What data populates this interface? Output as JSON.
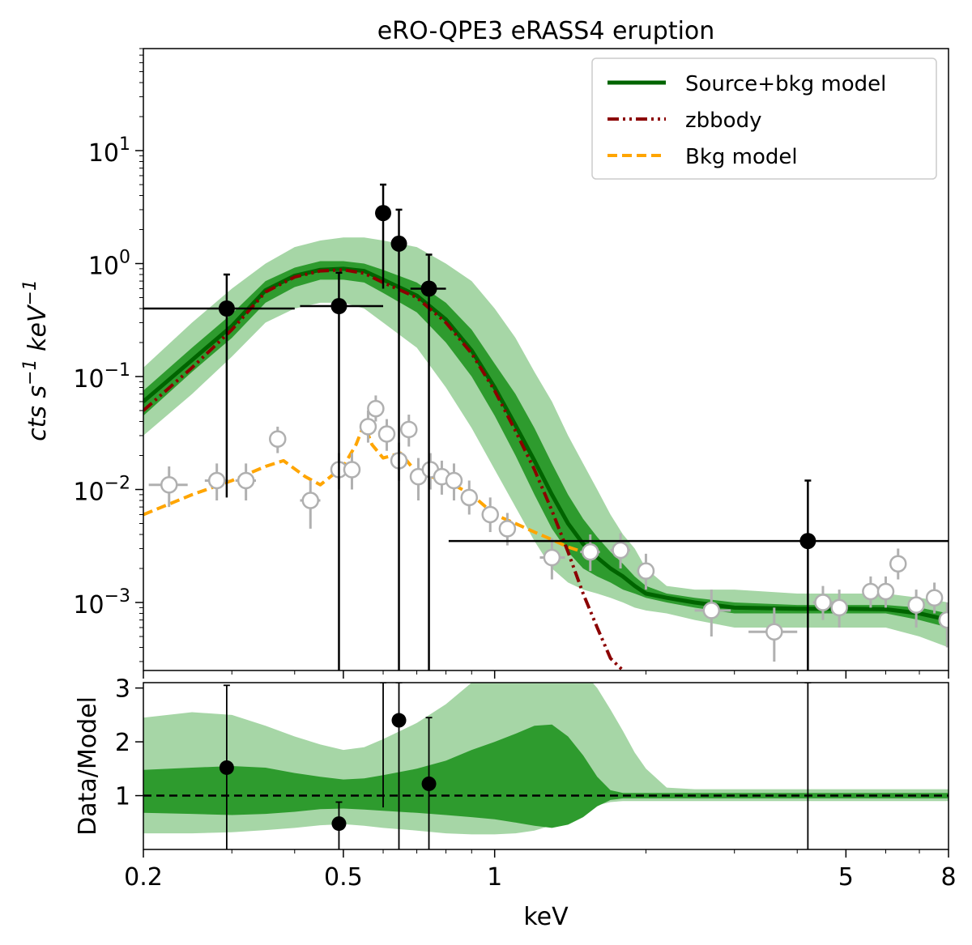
{
  "chart_data": [
    {
      "panel": "top",
      "type": "line",
      "title": "eRO-QPE3 eRASS4 eruption",
      "ylabel": "cts s^-1 keV^-1",
      "xscale": "log",
      "yscale": "log",
      "xlim": [
        0.2,
        8
      ],
      "ylim": [
        0.00025,
        80
      ],
      "yticks": [
        {
          "value": 0.001,
          "base": "10",
          "exp": "−3"
        },
        {
          "value": 0.01,
          "base": "10",
          "exp": "−2"
        },
        {
          "value": 0.1,
          "base": "10",
          "exp": "−1"
        },
        {
          "value": 1,
          "base": "10",
          "exp": "0"
        },
        {
          "value": 10,
          "base": "10",
          "exp": "1"
        }
      ],
      "legend": {
        "position": "top-right",
        "entries": [
          {
            "label": "Source+bkg model",
            "color": "#006400",
            "style": "solid"
          },
          {
            "label": "zbbody",
            "color": "#8b0000",
            "style": "dashdot"
          },
          {
            "label": "Bkg model",
            "color": "#ffa500",
            "style": "dashed"
          }
        ]
      },
      "bands": {
        "x": [
          0.2,
          0.25,
          0.3,
          0.35,
          0.4,
          0.45,
          0.5,
          0.55,
          0.6,
          0.7,
          0.8,
          0.9,
          1.0,
          1.1,
          1.2,
          1.3,
          1.4,
          1.5,
          1.6,
          1.7,
          1.8,
          1.9,
          2.0,
          2.2,
          2.5,
          3.0,
          4.0,
          5.0,
          6.0,
          7.0,
          8.0
        ],
        "outer_low": [
          0.03,
          0.07,
          0.15,
          0.3,
          0.4,
          0.45,
          0.45,
          0.4,
          0.3,
          0.18,
          0.08,
          0.035,
          0.015,
          0.007,
          0.0035,
          0.002,
          0.0015,
          0.0013,
          0.0012,
          0.0011,
          0.001,
          0.0009,
          0.00085,
          0.0008,
          0.0007,
          0.0006,
          0.0006,
          0.0006,
          0.0006,
          0.0005,
          0.0004
        ],
        "outer_high": [
          0.12,
          0.3,
          0.6,
          1.0,
          1.4,
          1.6,
          1.7,
          1.7,
          1.6,
          1.4,
          1.0,
          0.7,
          0.4,
          0.22,
          0.11,
          0.06,
          0.03,
          0.017,
          0.01,
          0.006,
          0.004,
          0.003,
          0.002,
          0.0014,
          0.0013,
          0.0013,
          0.0012,
          0.0012,
          0.0012,
          0.0011,
          0.001
        ],
        "inner_low": [
          0.045,
          0.11,
          0.22,
          0.45,
          0.62,
          0.72,
          0.72,
          0.68,
          0.55,
          0.37,
          0.2,
          0.1,
          0.045,
          0.02,
          0.009,
          0.0045,
          0.0028,
          0.002,
          0.0017,
          0.0015,
          0.0013,
          0.0012,
          0.0011,
          0.001,
          0.0009,
          0.0008,
          0.0008,
          0.0008,
          0.0008,
          0.0007,
          0.0006
        ],
        "inner_high": [
          0.075,
          0.18,
          0.36,
          0.7,
          0.92,
          1.05,
          1.05,
          1.0,
          0.88,
          0.68,
          0.45,
          0.26,
          0.13,
          0.07,
          0.035,
          0.017,
          0.009,
          0.0055,
          0.0038,
          0.0028,
          0.0022,
          0.0017,
          0.0014,
          0.0012,
          0.0011,
          0.001,
          0.00095,
          0.00095,
          0.00095,
          0.0009,
          0.0008
        ]
      },
      "series": [
        {
          "name": "Source+bkg model",
          "x": [
            0.2,
            0.25,
            0.3,
            0.35,
            0.4,
            0.45,
            0.5,
            0.55,
            0.6,
            0.7,
            0.8,
            0.9,
            1.0,
            1.1,
            1.2,
            1.3,
            1.4,
            1.5,
            1.6,
            1.7,
            1.8,
            1.9,
            2.0,
            2.2,
            2.5,
            3.0,
            4.0,
            5.0,
            6.0,
            7.0,
            8.0
          ],
          "y": [
            0.06,
            0.14,
            0.28,
            0.58,
            0.78,
            0.88,
            0.9,
            0.86,
            0.72,
            0.52,
            0.32,
            0.17,
            0.08,
            0.037,
            0.018,
            0.009,
            0.005,
            0.0033,
            0.0025,
            0.002,
            0.0017,
            0.0014,
            0.0012,
            0.0011,
            0.001,
            0.0009,
            0.00088,
            0.00088,
            0.00087,
            0.0008,
            0.0007
          ]
        },
        {
          "name": "zbbody",
          "x": [
            0.2,
            0.25,
            0.3,
            0.35,
            0.4,
            0.45,
            0.5,
            0.55,
            0.6,
            0.7,
            0.8,
            0.9,
            1.0,
            1.1,
            1.2,
            1.3,
            1.4,
            1.5,
            1.6,
            1.7,
            1.8
          ],
          "y": [
            0.05,
            0.12,
            0.26,
            0.56,
            0.76,
            0.86,
            0.88,
            0.82,
            0.68,
            0.5,
            0.3,
            0.16,
            0.075,
            0.033,
            0.015,
            0.0065,
            0.0028,
            0.0012,
            0.0006,
            0.00032,
            0.00025
          ]
        },
        {
          "name": "Bkg model",
          "x": [
            0.2,
            0.25,
            0.3,
            0.35,
            0.38,
            0.42,
            0.45,
            0.5,
            0.53,
            0.55,
            0.57,
            0.6,
            0.65,
            0.7,
            0.8,
            0.9,
            1.0,
            1.1,
            1.2,
            1.3,
            1.4,
            1.5,
            1.6
          ],
          "y": [
            0.006,
            0.009,
            0.012,
            0.016,
            0.018,
            0.013,
            0.011,
            0.016,
            0.025,
            0.038,
            0.025,
            0.019,
            0.021,
            0.014,
            0.012,
            0.009,
            0.006,
            0.005,
            0.0042,
            0.0036,
            0.0031,
            0.0028,
            0.0026
          ]
        }
      ],
      "source_points": [
        {
          "x": 0.293,
          "y": 0.4,
          "xlo": 0.2,
          "xhi": 0.4,
          "ylo": 0.0085,
          "yhi": 0.8
        },
        {
          "x": 0.49,
          "y": 0.42,
          "xlo": 0.41,
          "xhi": 0.6,
          "ylo": 0.00025,
          "yhi": 0.83
        },
        {
          "x": 0.6,
          "y": 2.8,
          "xlo": 0.59,
          "xhi": 0.61,
          "ylo": 0.6,
          "yhi": 5.0
        },
        {
          "x": 0.645,
          "y": 1.5,
          "xlo": 0.63,
          "xhi": 0.66,
          "ylo": 0.00025,
          "yhi": 3.0
        },
        {
          "x": 0.74,
          "y": 0.6,
          "xlo": 0.68,
          "xhi": 0.8,
          "ylo": 0.00025,
          "yhi": 1.2
        },
        {
          "x": 4.2,
          "y": 0.0035,
          "xlo": 0.81,
          "xhi": 8.0,
          "ylo": 0.00025,
          "yhi": 0.012
        }
      ],
      "background_points": [
        {
          "x": 0.225,
          "y": 0.011,
          "xlo": 0.205,
          "xhi": 0.245,
          "ylo": 0.007,
          "yhi": 0.016
        },
        {
          "x": 0.28,
          "y": 0.012,
          "xlo": 0.265,
          "xhi": 0.295,
          "ylo": 0.008,
          "yhi": 0.017
        },
        {
          "x": 0.32,
          "y": 0.012,
          "xlo": 0.305,
          "xhi": 0.335,
          "ylo": 0.008,
          "yhi": 0.017
        },
        {
          "x": 0.37,
          "y": 0.028,
          "xlo": 0.36,
          "xhi": 0.38,
          "ylo": 0.021,
          "yhi": 0.036
        },
        {
          "x": 0.43,
          "y": 0.008,
          "xlo": 0.41,
          "xhi": 0.45,
          "ylo": 0.0045,
          "yhi": 0.012
        },
        {
          "x": 0.49,
          "y": 0.015,
          "xlo": 0.48,
          "xhi": 0.5,
          "ylo": 0.01,
          "yhi": 0.021
        },
        {
          "x": 0.52,
          "y": 0.015,
          "xlo": 0.51,
          "xhi": 0.535,
          "ylo": 0.01,
          "yhi": 0.021
        },
        {
          "x": 0.56,
          "y": 0.036,
          "xlo": 0.55,
          "xhi": 0.57,
          "ylo": 0.026,
          "yhi": 0.05
        },
        {
          "x": 0.58,
          "y": 0.052,
          "xlo": 0.57,
          "xhi": 0.59,
          "ylo": 0.04,
          "yhi": 0.068
        },
        {
          "x": 0.61,
          "y": 0.031,
          "xlo": 0.6,
          "xhi": 0.62,
          "ylo": 0.022,
          "yhi": 0.042
        },
        {
          "x": 0.645,
          "y": 0.018,
          "xlo": 0.635,
          "xhi": 0.655,
          "ylo": 0.012,
          "yhi": 0.026
        },
        {
          "x": 0.675,
          "y": 0.034,
          "xlo": 0.665,
          "xhi": 0.685,
          "ylo": 0.024,
          "yhi": 0.046
        },
        {
          "x": 0.705,
          "y": 0.013,
          "xlo": 0.695,
          "xhi": 0.715,
          "ylo": 0.008,
          "yhi": 0.019
        },
        {
          "x": 0.745,
          "y": 0.015,
          "xlo": 0.735,
          "xhi": 0.755,
          "ylo": 0.01,
          "yhi": 0.021
        },
        {
          "x": 0.785,
          "y": 0.013,
          "xlo": 0.775,
          "xhi": 0.795,
          "ylo": 0.009,
          "yhi": 0.018
        },
        {
          "x": 0.83,
          "y": 0.012,
          "xlo": 0.815,
          "xhi": 0.845,
          "ylo": 0.008,
          "yhi": 0.017
        },
        {
          "x": 0.89,
          "y": 0.0085,
          "xlo": 0.87,
          "xhi": 0.91,
          "ylo": 0.006,
          "yhi": 0.012
        },
        {
          "x": 0.98,
          "y": 0.006,
          "xlo": 0.96,
          "xhi": 1.0,
          "ylo": 0.0042,
          "yhi": 0.0085
        },
        {
          "x": 1.06,
          "y": 0.0045,
          "xlo": 1.03,
          "xhi": 1.09,
          "ylo": 0.0032,
          "yhi": 0.0062
        },
        {
          "x": 1.3,
          "y": 0.0025,
          "xlo": 1.23,
          "xhi": 1.38,
          "ylo": 0.0016,
          "yhi": 0.0037
        },
        {
          "x": 1.55,
          "y": 0.0028,
          "xlo": 1.48,
          "xhi": 1.62,
          "ylo": 0.0019,
          "yhi": 0.004
        },
        {
          "x": 1.78,
          "y": 0.0029,
          "xlo": 1.7,
          "xhi": 1.86,
          "ylo": 0.002,
          "yhi": 0.0041
        },
        {
          "x": 2.0,
          "y": 0.0019,
          "xlo": 1.92,
          "xhi": 2.08,
          "ylo": 0.0013,
          "yhi": 0.0027
        },
        {
          "x": 2.7,
          "y": 0.00085,
          "xlo": 2.5,
          "xhi": 2.95,
          "ylo": 0.0005,
          "yhi": 0.0013
        },
        {
          "x": 3.6,
          "y": 0.00055,
          "xlo": 3.2,
          "xhi": 4.0,
          "ylo": 0.0003,
          "yhi": 0.0009
        },
        {
          "x": 4.5,
          "y": 0.001,
          "xlo": 4.3,
          "xhi": 4.7,
          "ylo": 0.0007,
          "yhi": 0.0014
        },
        {
          "x": 4.85,
          "y": 0.0009,
          "xlo": 4.7,
          "xhi": 5.0,
          "ylo": 0.0006,
          "yhi": 0.0013
        },
        {
          "x": 5.6,
          "y": 0.00125,
          "xlo": 5.5,
          "xhi": 5.7,
          "ylo": 0.0009,
          "yhi": 0.0017
        },
        {
          "x": 6.0,
          "y": 0.00125,
          "xlo": 5.9,
          "xhi": 6.1,
          "ylo": 0.0009,
          "yhi": 0.0017
        },
        {
          "x": 6.35,
          "y": 0.0022,
          "xlo": 6.25,
          "xhi": 6.45,
          "ylo": 0.0016,
          "yhi": 0.003
        },
        {
          "x": 6.9,
          "y": 0.00095,
          "xlo": 6.8,
          "xhi": 7.0,
          "ylo": 0.0006,
          "yhi": 0.0013
        },
        {
          "x": 7.5,
          "y": 0.0011,
          "xlo": 7.4,
          "xhi": 7.6,
          "ylo": 0.0008,
          "yhi": 0.0015
        },
        {
          "x": 7.95,
          "y": 0.0007,
          "xlo": 7.85,
          "xhi": 8.05,
          "ylo": 0.0004,
          "yhi": 0.001
        }
      ]
    },
    {
      "panel": "bottom",
      "type": "scatter",
      "xlabel": "keV",
      "ylabel": "Data/Model",
      "xscale": "log",
      "xlim": [
        0.2,
        8
      ],
      "ylim": [
        0,
        3.1
      ],
      "yticks": [
        "1",
        "2",
        "3"
      ],
      "xticks": [
        {
          "value": 0.2,
          "label": "0.2"
        },
        {
          "value": 0.5,
          "label": "0.5"
        },
        {
          "value": 1,
          "label": "1"
        },
        {
          "value": 5,
          "label": "5"
        },
        {
          "value": 8,
          "label": "8"
        }
      ],
      "reference_line": 1,
      "bands": {
        "x": [
          0.2,
          0.25,
          0.3,
          0.35,
          0.4,
          0.45,
          0.5,
          0.55,
          0.6,
          0.7,
          0.8,
          0.9,
          1.0,
          1.1,
          1.2,
          1.3,
          1.4,
          1.5,
          1.6,
          1.7,
          1.8,
          1.9,
          2.0,
          2.2,
          2.5,
          3.0,
          4.0,
          5.0,
          6.0,
          7.0,
          8.0
        ],
        "outer_low": [
          0.3,
          0.3,
          0.32,
          0.36,
          0.4,
          0.45,
          0.47,
          0.44,
          0.4,
          0.35,
          0.3,
          0.28,
          0.28,
          0.3,
          0.35,
          0.45,
          0.58,
          0.72,
          0.82,
          0.88,
          0.9,
          0.9,
          0.9,
          0.9,
          0.9,
          0.9,
          0.9,
          0.9,
          0.9,
          0.9,
          0.9
        ],
        "outer_high": [
          2.45,
          2.55,
          2.5,
          2.3,
          2.1,
          1.95,
          1.85,
          1.9,
          2.05,
          2.35,
          2.7,
          3.1,
          3.5,
          3.8,
          3.9,
          3.8,
          3.6,
          3.3,
          3.0,
          2.6,
          2.2,
          1.8,
          1.5,
          1.15,
          1.12,
          1.12,
          1.12,
          1.12,
          1.12,
          1.12,
          1.12
        ],
        "inner_low": [
          0.68,
          0.66,
          0.64,
          0.66,
          0.7,
          0.75,
          0.76,
          0.74,
          0.72,
          0.68,
          0.64,
          0.6,
          0.56,
          0.5,
          0.44,
          0.4,
          0.46,
          0.6,
          0.8,
          0.92,
          0.95,
          0.95,
          0.95,
          0.95,
          0.95,
          0.95,
          0.95,
          0.95,
          0.95,
          0.95,
          0.95
        ],
        "inner_high": [
          1.48,
          1.52,
          1.55,
          1.52,
          1.42,
          1.35,
          1.3,
          1.32,
          1.38,
          1.5,
          1.65,
          1.85,
          2.0,
          2.15,
          2.3,
          2.32,
          2.1,
          1.75,
          1.35,
          1.1,
          1.05,
          1.05,
          1.05,
          1.05,
          1.05,
          1.05,
          1.05,
          1.05,
          1.05,
          1.05,
          1.05
        ]
      },
      "points": [
        {
          "x": 0.293,
          "y": 1.52,
          "ylo": 0,
          "yhi": 3.05
        },
        {
          "x": 0.49,
          "y": 0.48,
          "ylo": 0,
          "yhi": 0.88
        },
        {
          "x": 0.6,
          "y": null,
          "ylo": 0.78,
          "yhi": 3.1
        },
        {
          "x": 0.645,
          "y": 2.4,
          "ylo": 0,
          "yhi": 3.1
        },
        {
          "x": 0.74,
          "y": 1.22,
          "ylo": 0,
          "yhi": 2.45
        },
        {
          "x": 4.2,
          "y": null,
          "ylo": 0,
          "yhi": 3.1
        }
      ]
    }
  ]
}
